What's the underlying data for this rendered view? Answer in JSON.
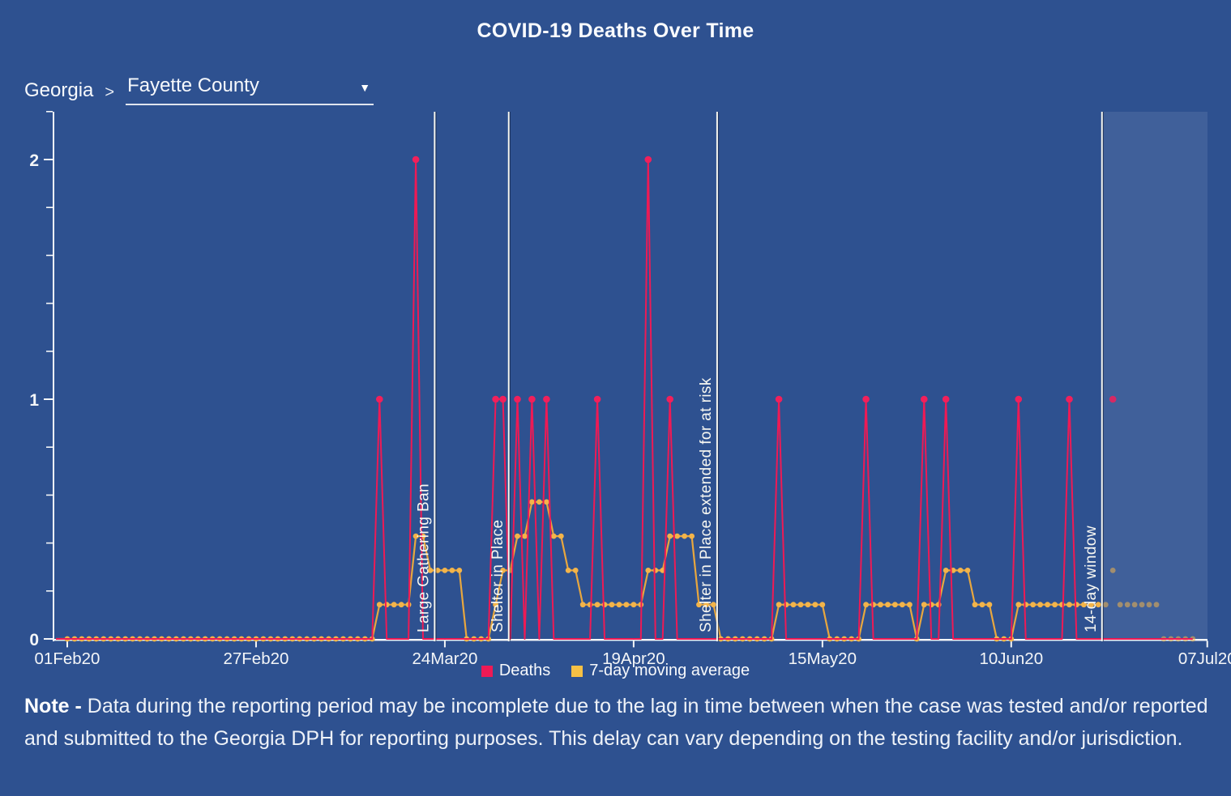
{
  "title": "COVID-19 Deaths Over Time",
  "breadcrumb": {
    "state": "Georgia",
    "separator": ">",
    "county": "Fayette County",
    "dropdown_icon": "▼"
  },
  "legend": [
    {
      "label": "Deaths",
      "color": "#ee1a55"
    },
    {
      "label": "7-day moving average",
      "color": "#f6c044"
    }
  ],
  "note": {
    "prefix": "Note -",
    "body": "Data during the reporting period may be incomplete due to the lag in time between when the case was tested and/or reported and submitted to the Georgia DPH for reporting purposes. This delay can vary depending on the testing facility and/or jurisdiction."
  },
  "colors": {
    "background": "#2e5190",
    "window_shade": "rgba(255,255,255,0.09)",
    "axis": "#f4f6f8",
    "deaths_line": "#ee1a55",
    "deaths_dot": "#f1205b",
    "ma_line": "#e8a73e",
    "ma_dot": "#f3b44a",
    "event_line": "#f7f7f0",
    "event_line_edge": "rgba(10,20,45,0.5)",
    "tick_text": "#f4f6f8"
  },
  "chart_data": {
    "type": "line",
    "title": "COVID-19 Deaths Over Time",
    "region": "Fayette County, Georgia",
    "x_axis": {
      "tick_labels": [
        "01Feb20",
        "27Feb20",
        "24Mar20",
        "19Apr20",
        "15May20",
        "10Jun20",
        "07Jul20"
      ],
      "tick_days": [
        0,
        26,
        52,
        78,
        104,
        130,
        157
      ],
      "total_days": 157
    },
    "y_axis": {
      "tick_labels": [
        "0",
        "1",
        "2"
      ],
      "ticks": [
        0,
        1,
        2
      ],
      "minor_step": 0.2,
      "max": 2.2,
      "grid": false
    },
    "last_data_day": 155,
    "series": [
      {
        "name": "Deaths",
        "type": "spike-line",
        "note": "daily death counts; zero on all days except the listed events",
        "events": [
          {
            "date": "15Mar20",
            "day": 43,
            "count": 1
          },
          {
            "date": "20Mar20",
            "day": 48,
            "count": 2
          },
          {
            "date": "31Mar20",
            "day": 59,
            "count": 1
          },
          {
            "date": "01Apr20",
            "day": 60,
            "count": 1
          },
          {
            "date": "03Apr20",
            "day": 62,
            "count": 1
          },
          {
            "date": "05Apr20",
            "day": 64,
            "count": 1
          },
          {
            "date": "07Apr20",
            "day": 66,
            "count": 1
          },
          {
            "date": "14Apr20",
            "day": 73,
            "count": 1
          },
          {
            "date": "21Apr20",
            "day": 80,
            "count": 2
          },
          {
            "date": "24Apr20",
            "day": 83,
            "count": 1
          },
          {
            "date": "09May20",
            "day": 98,
            "count": 1
          },
          {
            "date": "21May20",
            "day": 110,
            "count": 1
          },
          {
            "date": "29May20",
            "day": 118,
            "count": 1
          },
          {
            "date": "01Jun20",
            "day": 121,
            "count": 1
          },
          {
            "date": "11Jun20",
            "day": 131,
            "count": 1
          },
          {
            "date": "18Jun20",
            "day": 138,
            "count": 1
          },
          {
            "date": "24Jun20",
            "day": 144,
            "count": 1,
            "in_window": true
          }
        ]
      },
      {
        "name": "7-day moving average",
        "type": "dotted-line",
        "derived": "trailing-7-day-mean-of-deaths"
      }
    ],
    "annotations": [
      {
        "label": "Large Gathering Ban",
        "day": 50.6
      },
      {
        "label": "Shelter in Place",
        "day": 60.8
      },
      {
        "label": "Shelter in Place extended for at risk",
        "day": 89.5
      },
      {
        "label": "14-day window",
        "day": 142.5
      }
    ],
    "reporting_window": {
      "label": "14-day window",
      "start_day": 142.5
    }
  }
}
